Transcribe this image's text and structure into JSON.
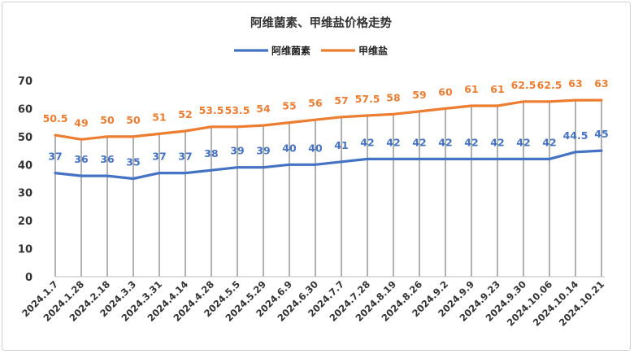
{
  "chart_data": {
    "type": "line",
    "title": "阿维菌素、甲维盐价格走势",
    "xlabel": "",
    "ylabel": "",
    "ylim": [
      0,
      70
    ],
    "yticks": [
      0,
      10,
      20,
      30,
      40,
      50,
      60,
      70
    ],
    "grid": "vertical drop lines",
    "legend_position": "top-center",
    "categories": [
      "2024.1.7",
      "2024.1.28",
      "2024.2.18",
      "2024.3.3",
      "2024.3.31",
      "2024.4.14",
      "2024.4.28",
      "2024.5.5",
      "2024.5.29",
      "2024.6.9",
      "2024.6.30",
      "2024.7.7",
      "2024.7.28",
      "2024.8.19",
      "2024.8.26",
      "2024.9.2",
      "2024.9.9",
      "2024.9.23",
      "2024.9.30",
      "2024.10.06",
      "2024.10.14",
      "2024.10.21"
    ],
    "series": [
      {
        "name": "阿维菌素",
        "color": "#4472C4",
        "values": [
          37,
          36,
          36,
          35,
          37,
          37,
          38,
          39,
          39,
          40,
          40,
          41,
          42,
          42,
          42,
          42,
          42,
          42,
          42,
          42,
          44.5,
          45
        ]
      },
      {
        "name": "甲维盐",
        "color": "#ED7D31",
        "values": [
          50.5,
          49,
          50,
          50,
          51,
          52,
          53.5,
          53.5,
          54,
          55,
          56,
          57,
          57.5,
          58,
          59,
          60,
          61,
          61,
          62.5,
          62.5,
          63,
          63
        ]
      }
    ]
  }
}
